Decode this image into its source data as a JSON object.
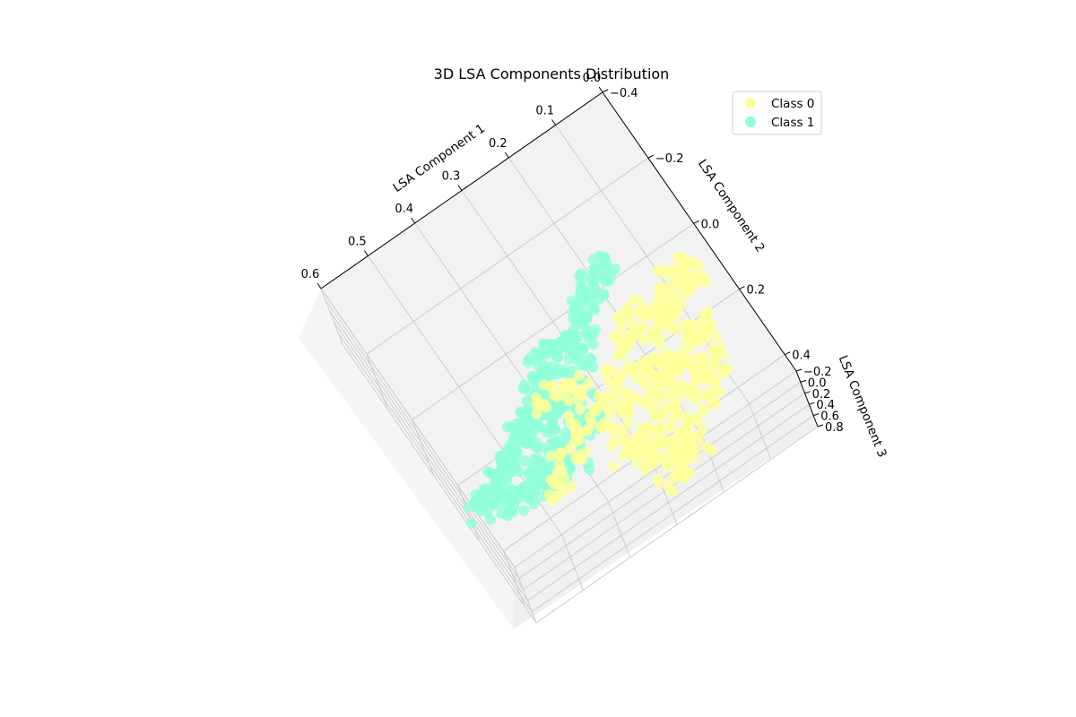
{
  "chart_data": {
    "type": "scatter",
    "title": "3D LSA Components Distribution",
    "projection": "3d",
    "axes": {
      "x": {
        "label": "LSA Component 1",
        "ticks": [
          "0.0",
          "0.1",
          "0.2",
          "0.3",
          "0.4",
          "0.5",
          "0.6"
        ],
        "range": [
          0.0,
          0.6
        ]
      },
      "y": {
        "label": "LSA Component 2",
        "ticks": [
          "−0.4",
          "−0.2",
          "0.0",
          "0.2",
          "0.4"
        ],
        "range": [
          -0.4,
          0.45
        ]
      },
      "z": {
        "label": "LSA Component 3",
        "ticks": [
          "−0.2",
          "0.0",
          "0.2",
          "0.4",
          "0.6",
          "0.8"
        ],
        "range": [
          -0.2,
          0.8
        ]
      }
    },
    "grid": true,
    "legend_position": "top-right",
    "series": [
      {
        "name": "Class 1",
        "color": "#8effd8",
        "points": [
          [
            0.32,
            0.02,
            0.05
          ],
          [
            0.35,
            0.05,
            0.1
          ],
          [
            0.38,
            0.08,
            0.05
          ],
          [
            0.4,
            0.1,
            0.15
          ],
          [
            0.42,
            0.12,
            0.1
          ],
          [
            0.44,
            0.14,
            0.05
          ],
          [
            0.46,
            0.15,
            0.2
          ],
          [
            0.48,
            0.17,
            0.1
          ],
          [
            0.5,
            0.18,
            0.15
          ],
          [
            0.52,
            0.2,
            0.1
          ],
          [
            0.55,
            0.22,
            0.05
          ],
          [
            0.36,
            0.12,
            0.2
          ],
          [
            0.38,
            0.15,
            0.15
          ],
          [
            0.41,
            0.2,
            0.1
          ],
          [
            0.43,
            0.22,
            0.25
          ],
          [
            0.45,
            0.25,
            0.15
          ],
          [
            0.47,
            0.28,
            0.1
          ],
          [
            0.5,
            0.26,
            0.2
          ],
          [
            0.3,
            0.06,
            0.3
          ],
          [
            0.28,
            0.03,
            0.1
          ],
          [
            0.33,
            0.18,
            0.2
          ],
          [
            0.35,
            0.22,
            0.1
          ],
          [
            0.26,
            0.0,
            0.2
          ],
          [
            0.24,
            -0.03,
            0.1
          ],
          [
            0.22,
            -0.05,
            0.15
          ],
          [
            0.2,
            -0.06,
            0.05
          ],
          [
            0.18,
            -0.08,
            0.1
          ],
          [
            0.4,
            0.28,
            0.1
          ],
          [
            0.53,
            0.27,
            0.15
          ],
          [
            0.56,
            0.24,
            0.1
          ],
          [
            0.58,
            0.22,
            0.15
          ],
          [
            0.34,
            0.0,
            0.25
          ]
        ]
      },
      {
        "name": "Class 0",
        "color": "#fdff9a",
        "points": [
          [
            0.15,
            0.1,
            0.1
          ],
          [
            0.18,
            0.15,
            0.2
          ],
          [
            0.2,
            0.2,
            0.15
          ],
          [
            0.22,
            0.25,
            0.1
          ],
          [
            0.25,
            0.3,
            0.2
          ],
          [
            0.28,
            0.33,
            0.15
          ],
          [
            0.3,
            0.36,
            0.1
          ],
          [
            0.12,
            0.12,
            0.2
          ],
          [
            0.1,
            0.08,
            0.15
          ],
          [
            0.08,
            0.05,
            0.1
          ],
          [
            0.06,
            0.02,
            0.2
          ],
          [
            0.05,
            0.06,
            0.1
          ],
          [
            0.14,
            0.2,
            0.2
          ],
          [
            0.16,
            0.26,
            0.1
          ],
          [
            0.19,
            0.3,
            0.15
          ],
          [
            0.21,
            0.35,
            0.2
          ],
          [
            0.23,
            0.38,
            0.1
          ],
          [
            0.26,
            0.4,
            0.15
          ],
          [
            0.12,
            0.28,
            0.1
          ],
          [
            0.1,
            0.24,
            0.2
          ],
          [
            0.09,
            0.18,
            0.1
          ],
          [
            0.2,
            0.1,
            0.05
          ],
          [
            0.25,
            0.15,
            0.1
          ],
          [
            0.28,
            0.2,
            0.15
          ],
          [
            0.3,
            0.25,
            0.1
          ],
          [
            0.32,
            0.3,
            0.2
          ],
          [
            0.35,
            0.2,
            0.1
          ],
          [
            0.4,
            0.25,
            0.15
          ],
          [
            0.45,
            0.3,
            0.1
          ],
          [
            0.33,
            0.12,
            0.1
          ],
          [
            0.38,
            0.1,
            0.05
          ],
          [
            0.1,
            0.15,
            0.3
          ],
          [
            0.17,
            0.05,
            0.1
          ],
          [
            0.14,
            0.32,
            0.2
          ],
          [
            0.22,
            0.42,
            0.1
          ],
          [
            0.27,
            0.43,
            0.2
          ]
        ]
      }
    ]
  }
}
